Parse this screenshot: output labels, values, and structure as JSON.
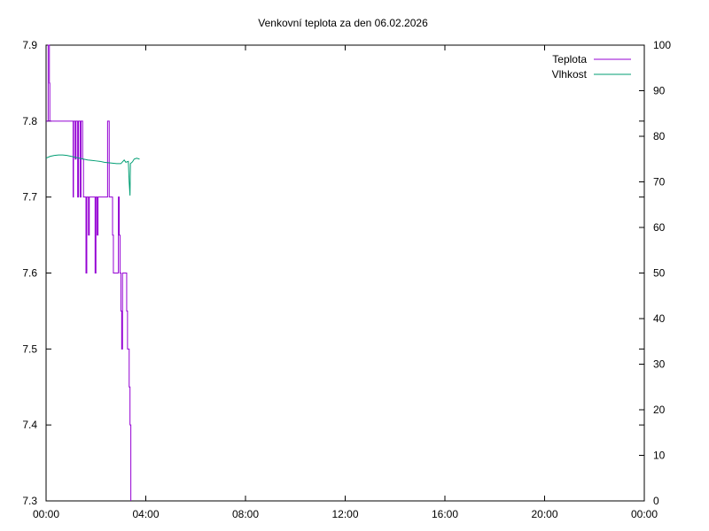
{
  "chart_data": {
    "type": "line",
    "title": "Venkovní teplota za den 06.02.2026",
    "xlabel": "",
    "ylabel": "",
    "y2label": "",
    "x_ticks": [
      "00:00",
      "04:00",
      "08:00",
      "12:00",
      "16:00",
      "20:00",
      "00:00"
    ],
    "xlim": [
      "00:00",
      "24:00"
    ],
    "ylim": [
      7.3,
      7.9
    ],
    "y_ticks": [
      "7.3",
      "7.4",
      "7.5",
      "7.6",
      "7.7",
      "7.8",
      "7.9"
    ],
    "y2lim": [
      0,
      100
    ],
    "y2_ticks": [
      "0",
      "10",
      "20",
      "30",
      "40",
      "50",
      "60",
      "70",
      "80",
      "90",
      "100"
    ],
    "grid": false,
    "legend_position": "top-right",
    "series": [
      {
        "name": "Teplota",
        "axis": "left",
        "color": "#9400d3",
        "style": "step",
        "points": [
          [
            "00:00",
            7.8
          ],
          [
            "00:05",
            7.8
          ],
          [
            "00:05",
            7.9
          ],
          [
            "00:08",
            7.9
          ],
          [
            "00:08",
            7.85
          ],
          [
            "00:09",
            7.85
          ],
          [
            "00:09",
            7.8
          ],
          [
            "01:05",
            7.8
          ],
          [
            "01:05",
            7.7
          ],
          [
            "01:06",
            7.7
          ],
          [
            "01:06",
            7.8
          ],
          [
            "01:10",
            7.8
          ],
          [
            "01:10",
            7.75
          ],
          [
            "01:12",
            7.75
          ],
          [
            "01:12",
            7.8
          ],
          [
            "01:16",
            7.8
          ],
          [
            "01:16",
            7.7
          ],
          [
            "01:18",
            7.7
          ],
          [
            "01:18",
            7.8
          ],
          [
            "01:22",
            7.8
          ],
          [
            "01:22",
            7.7
          ],
          [
            "01:24",
            7.7
          ],
          [
            "01:24",
            7.8
          ],
          [
            "01:28",
            7.8
          ],
          [
            "01:28",
            7.75
          ],
          [
            "01:30",
            7.75
          ],
          [
            "01:30",
            7.7
          ],
          [
            "01:36",
            7.7
          ],
          [
            "01:36",
            7.6
          ],
          [
            "01:38",
            7.6
          ],
          [
            "01:38",
            7.7
          ],
          [
            "01:42",
            7.7
          ],
          [
            "01:42",
            7.65
          ],
          [
            "01:44",
            7.65
          ],
          [
            "01:44",
            7.7
          ],
          [
            "01:58",
            7.7
          ],
          [
            "01:58",
            7.6
          ],
          [
            "02:00",
            7.6
          ],
          [
            "02:00",
            7.7
          ],
          [
            "02:03",
            7.7
          ],
          [
            "02:03",
            7.65
          ],
          [
            "02:05",
            7.65
          ],
          [
            "02:05",
            7.7
          ],
          [
            "02:28",
            7.7
          ],
          [
            "02:28",
            7.8
          ],
          [
            "02:32",
            7.8
          ],
          [
            "02:32",
            7.7
          ],
          [
            "02:40",
            7.7
          ],
          [
            "02:40",
            7.65
          ],
          [
            "02:42",
            7.65
          ],
          [
            "02:42",
            7.6
          ],
          [
            "02:54",
            7.6
          ],
          [
            "02:54",
            7.7
          ],
          [
            "02:56",
            7.7
          ],
          [
            "02:56",
            7.65
          ],
          [
            "02:58",
            7.65
          ],
          [
            "02:58",
            7.6
          ],
          [
            "03:00",
            7.6
          ],
          [
            "03:00",
            7.55
          ],
          [
            "03:02",
            7.55
          ],
          [
            "03:02",
            7.5
          ],
          [
            "03:04",
            7.5
          ],
          [
            "03:04",
            7.6
          ],
          [
            "03:14",
            7.6
          ],
          [
            "03:14",
            7.55
          ],
          [
            "03:16",
            7.55
          ],
          [
            "03:16",
            7.5
          ],
          [
            "03:20",
            7.5
          ],
          [
            "03:20",
            7.45
          ],
          [
            "03:22",
            7.45
          ],
          [
            "03:22",
            7.4
          ],
          [
            "03:24",
            7.4
          ],
          [
            "03:24",
            7.3
          ]
        ]
      },
      {
        "name": "Vlhkost",
        "axis": "right",
        "color": "#009e73",
        "style": "line",
        "points": [
          [
            "00:00",
            75.2
          ],
          [
            "00:10",
            75.6
          ],
          [
            "00:20",
            75.8
          ],
          [
            "00:30",
            75.9
          ],
          [
            "00:40",
            75.9
          ],
          [
            "00:50",
            75.8
          ],
          [
            "01:00",
            75.6
          ],
          [
            "01:10",
            75.4
          ],
          [
            "01:20",
            75.2
          ],
          [
            "01:30",
            75.0
          ],
          [
            "01:40",
            74.8
          ],
          [
            "01:50",
            74.7
          ],
          [
            "02:00",
            74.6
          ],
          [
            "02:10",
            74.5
          ],
          [
            "02:20",
            74.3
          ],
          [
            "02:30",
            74.2
          ],
          [
            "02:40",
            74.1
          ],
          [
            "02:50",
            74.0
          ],
          [
            "03:00",
            74.0
          ],
          [
            "03:08",
            74.8
          ],
          [
            "03:12",
            74.3
          ],
          [
            "03:18",
            74.5
          ],
          [
            "03:20",
            70.0
          ],
          [
            "03:22",
            67.0
          ],
          [
            "03:23",
            74.0
          ],
          [
            "03:28",
            74.4
          ],
          [
            "03:32",
            75.0
          ],
          [
            "03:38",
            75.2
          ],
          [
            "03:45",
            75.0
          ]
        ]
      }
    ]
  }
}
